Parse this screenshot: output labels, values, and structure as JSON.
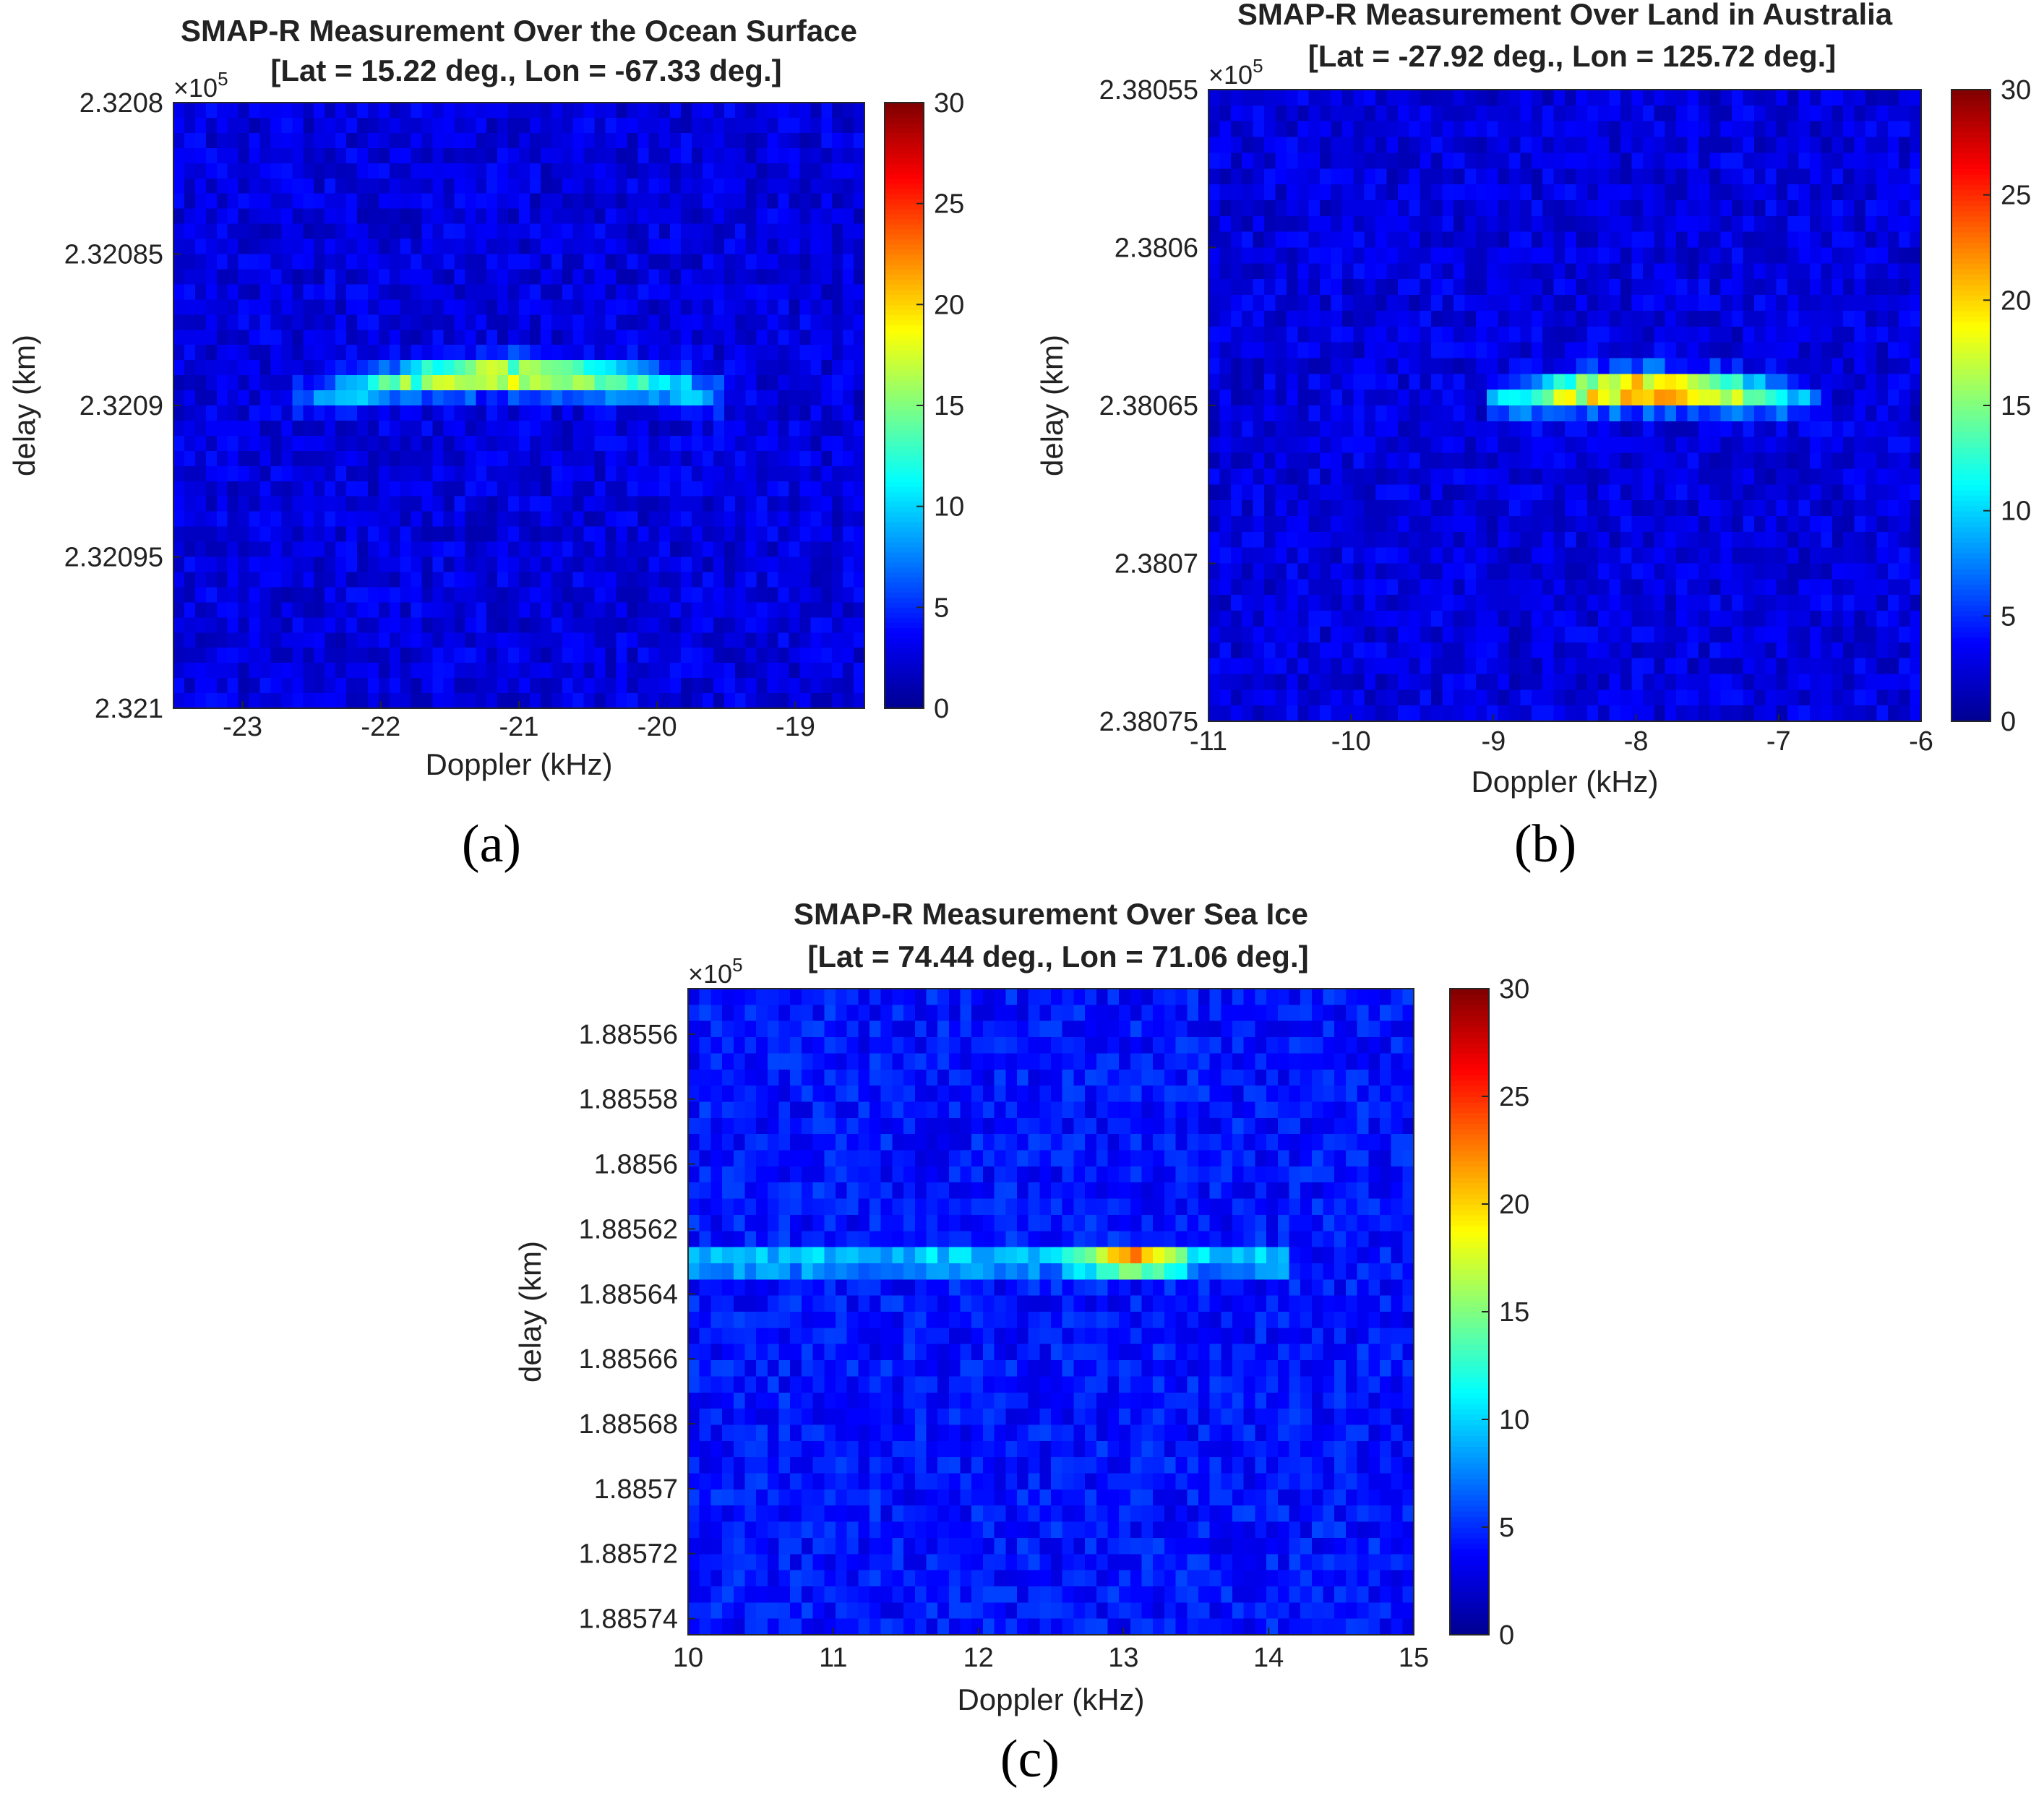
{
  "figure": {
    "panel_labels": [
      "(a)",
      "(b)",
      "(c)"
    ]
  },
  "colormap": [
    "#00008f",
    "#0000ff",
    "#0080ff",
    "#00ffff",
    "#80ff80",
    "#ffff00",
    "#ff8000",
    "#ff0000",
    "#800000"
  ],
  "chart_data": [
    {
      "type": "heatmap",
      "title": "SMAP-R Measurement Over the Ocean Surface",
      "subtitle": "[Lat = 15.22 deg., Lon = -67.33 deg.]",
      "exponent_label": "×10",
      "exponent_power": "5",
      "xlabel": "Doppler (kHz)",
      "ylabel": "delay (km)",
      "xlim": [
        -23.5,
        -18.5
      ],
      "ylim": [
        232080,
        232100
      ],
      "x_ticks": [
        -23,
        -22,
        -21,
        -20,
        -19
      ],
      "x_tick_labels": [
        "-23",
        "-22",
        "-21",
        "-20",
        "-19"
      ],
      "y_ticks": [
        232080,
        232085,
        232090,
        232095,
        232100
      ],
      "y_tick_labels": [
        "2.3208",
        "2.32085",
        "2.3209",
        "2.32095",
        "2.321"
      ],
      "colorbar": {
        "min": 0,
        "max": 30,
        "ticks": [
          0,
          5,
          10,
          15,
          20,
          25,
          30
        ],
        "tick_labels": [
          "0",
          "5",
          "10",
          "15",
          "20",
          "25",
          "30"
        ]
      },
      "background_level": 2.5,
      "feature": {
        "shape": "arc",
        "x_start": -22.8,
        "x_end": -19.6,
        "peak_x": -21.0,
        "peak_delay": 232089.0,
        "edge_delay": 232090.0,
        "peak_value": 19
      }
    },
    {
      "type": "heatmap",
      "title": "SMAP-R Measurement Over Land in Australia",
      "subtitle": "[Lat = -27.92 deg., Lon = 125.72 deg.]",
      "exponent_label": "×10",
      "exponent_power": "5",
      "xlabel": "Doppler (kHz)",
      "ylabel": "delay (km)",
      "xlim": [
        -11,
        -6
      ],
      "ylim": [
        238055,
        238075
      ],
      "x_ticks": [
        -11,
        -10,
        -9,
        -8,
        -7,
        -6
      ],
      "x_tick_labels": [
        "-11",
        "-10",
        "-9",
        "-8",
        "-7",
        "-6"
      ],
      "y_ticks": [
        238055,
        238060,
        238065,
        238070,
        238075
      ],
      "y_tick_labels": [
        "2.38055",
        "2.3806",
        "2.38065",
        "2.3807",
        "2.38075"
      ],
      "colorbar": {
        "min": 0,
        "max": 30,
        "ticks": [
          0,
          5,
          10,
          15,
          20,
          25,
          30
        ],
        "tick_labels": [
          "0",
          "5",
          "10",
          "15",
          "20",
          "25",
          "30"
        ]
      },
      "background_level": 2.5,
      "feature": {
        "shape": "band",
        "x_start": -9.0,
        "x_end": -6.6,
        "peak_x": -7.9,
        "peak_delay": 238064.5,
        "edge_delay": 238065.0,
        "peak_value": 23
      }
    },
    {
      "type": "heatmap",
      "title": "SMAP-R Measurement Over Sea Ice",
      "subtitle": "[Lat = 74.44 deg., Lon = 71.06 deg.]",
      "exponent_label": "×10",
      "exponent_power": "5",
      "xlabel": "Doppler (kHz)",
      "ylabel": "delay (km)",
      "xlim": [
        10,
        15
      ],
      "ylim": [
        188554.6,
        188574.5
      ],
      "x_ticks": [
        10,
        11,
        12,
        13,
        14,
        15
      ],
      "x_tick_labels": [
        "10",
        "11",
        "12",
        "13",
        "14",
        "15"
      ],
      "y_ticks": [
        188556,
        188558,
        188560,
        188562,
        188564,
        188566,
        188568,
        188570,
        188572,
        188574
      ],
      "y_tick_labels": [
        "1.88556",
        "1.88558",
        "1.8856",
        "1.88562",
        "1.88564",
        "1.88566",
        "1.88568",
        "1.8857",
        "1.88572",
        "1.88574"
      ],
      "colorbar": {
        "min": 0,
        "max": 30,
        "ticks": [
          0,
          5,
          10,
          15,
          20,
          25,
          30
        ],
        "tick_labels": [
          "0",
          "5",
          "10",
          "15",
          "20",
          "25",
          "30"
        ]
      },
      "background_level": 4,
      "feature": {
        "shape": "line",
        "x_start": 10.0,
        "x_end": 14.1,
        "peak_x": 13.05,
        "peak_delay": 188563.0,
        "edge_delay": 188563.0,
        "peak_value": 30
      }
    }
  ]
}
